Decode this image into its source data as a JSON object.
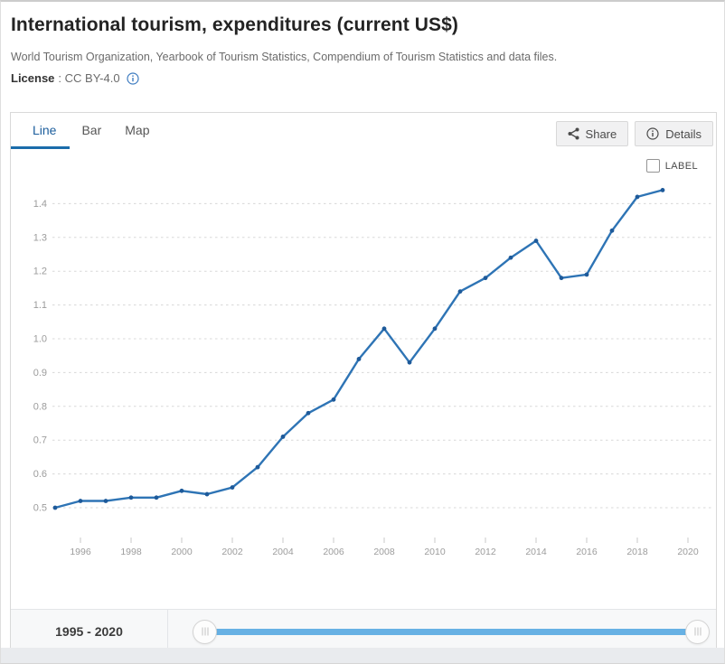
{
  "header": {
    "title": "International tourism, expenditures (current US$)",
    "source": "World Tourism Organization, Yearbook of Tourism Statistics, Compendium of Tourism Statistics and data files.",
    "license_label": "License",
    "license_rest": ": CC BY-4.0"
  },
  "tabs": [
    {
      "label": "Line",
      "active": true
    },
    {
      "label": "Bar",
      "active": false
    },
    {
      "label": "Map",
      "active": false
    }
  ],
  "actions": {
    "share_label": "Share",
    "details_label": "Details"
  },
  "chart_controls": {
    "label_checkbox_text": "LABEL",
    "label_checkbox_checked": false
  },
  "chart_data": {
    "type": "line",
    "title": "International tourism, expenditures (current US$)",
    "x": [
      1995,
      1996,
      1997,
      1998,
      1999,
      2000,
      2001,
      2002,
      2003,
      2004,
      2005,
      2006,
      2007,
      2008,
      2009,
      2010,
      2011,
      2012,
      2013,
      2014,
      2015,
      2016,
      2017,
      2018,
      2019
    ],
    "values": [
      0.5,
      0.52,
      0.52,
      0.53,
      0.53,
      0.55,
      0.54,
      0.56,
      0.62,
      0.71,
      0.78,
      0.82,
      0.94,
      1.03,
      0.93,
      1.03,
      1.14,
      1.18,
      1.24,
      1.29,
      1.18,
      1.19,
      1.32,
      1.42,
      1.44
    ],
    "xticks": [
      1996,
      1998,
      2000,
      2002,
      2004,
      2006,
      2008,
      2010,
      2012,
      2014,
      2016,
      2018,
      2020
    ],
    "yticks": [
      0.5,
      0.6,
      0.7,
      0.8,
      0.9,
      1.0,
      1.1,
      1.2,
      1.3,
      1.4
    ],
    "xlim": [
      1994.6,
      2021.1
    ],
    "ylim": [
      0.46,
      1.49
    ],
    "grid": "horizontal-dashed",
    "legend": "none",
    "line_color": "#2e74b5",
    "point_color": "#1e5a9a",
    "grid_color": "#d8d8d8",
    "axis_text_color": "#9c9c9c"
  },
  "slider": {
    "range_label": "1995 - 2020",
    "start_year": 1995,
    "end_year": 2020
  },
  "colors": {
    "accent_blue": "#1b6cab",
    "slider_track": "#67b1e4"
  }
}
